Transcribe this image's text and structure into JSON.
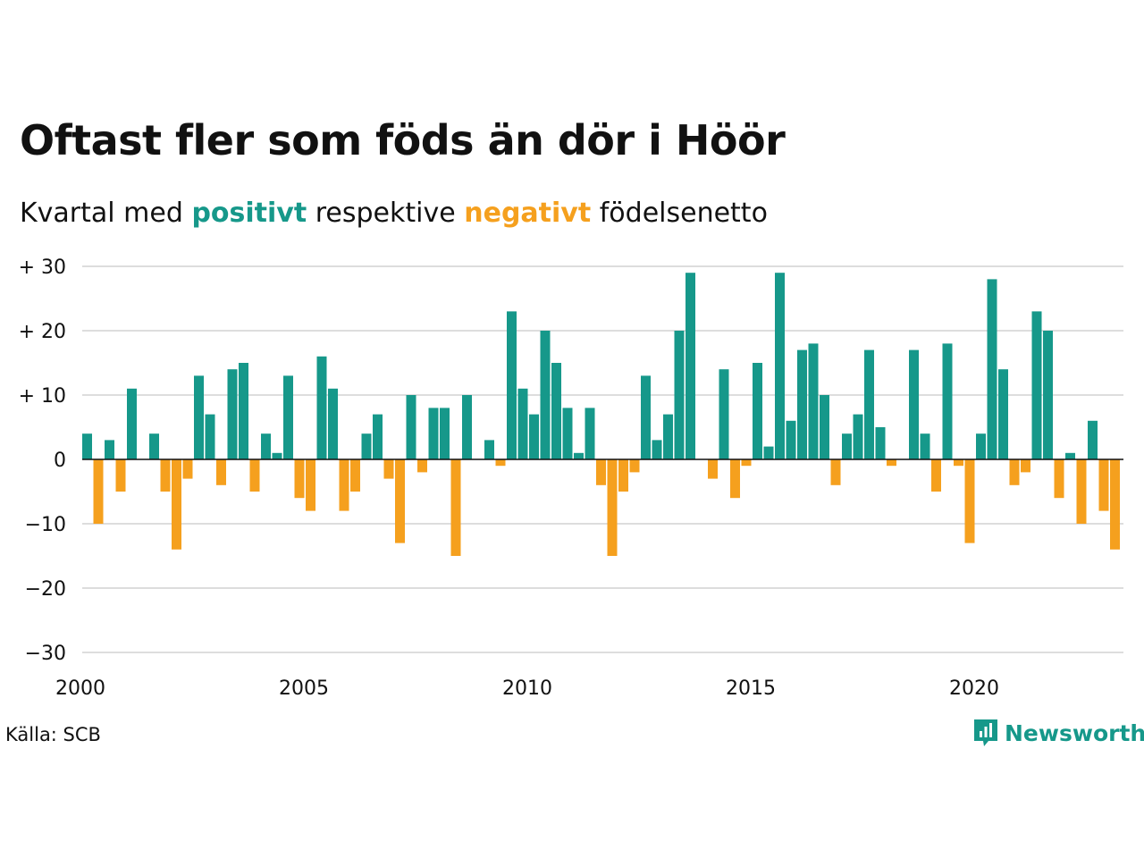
{
  "title": "Oftast fler som föds än dör i Höör",
  "subtitle": {
    "prefix": "Kvartal med",
    "positive_word": "positivt",
    "middle": "respektive",
    "negative_word": "negativt",
    "suffix": "födelsenetto"
  },
  "source": "Källa: SCB",
  "brand": "Newsworthy",
  "colors": {
    "positive": "#16988a",
    "negative": "#f5a01e",
    "grid": "#dddddd",
    "zero_line": "#111111"
  },
  "chart_data": {
    "type": "bar",
    "ylim": [
      -30,
      30
    ],
    "grid": true,
    "y_ticks": [
      {
        "value": 30,
        "label": "+ 30"
      },
      {
        "value": 20,
        "label": "+ 20"
      },
      {
        "value": 10,
        "label": "+ 10"
      },
      {
        "value": 0,
        "label": "0"
      },
      {
        "value": -10,
        "label": "−10"
      },
      {
        "value": -20,
        "label": "−20"
      },
      {
        "value": -30,
        "label": "−30"
      }
    ],
    "x_ticks": [
      "2000",
      "2005",
      "2010",
      "2015",
      "2020"
    ],
    "start_year": 2000,
    "values": [
      4,
      -10,
      3,
      -5,
      11,
      0,
      4,
      -5,
      -14,
      -3,
      13,
      7,
      -4,
      14,
      15,
      -5,
      4,
      1,
      13,
      -6,
      -8,
      16,
      11,
      -8,
      -5,
      4,
      7,
      -3,
      -13,
      10,
      -2,
      8,
      8,
      -15,
      10,
      0,
      3,
      -1,
      23,
      11,
      7,
      20,
      15,
      8,
      1,
      8,
      -4,
      -15,
      -5,
      -2,
      13,
      3,
      7,
      20,
      29,
      0,
      -3,
      14,
      -6,
      -1,
      15,
      2,
      29,
      6,
      17,
      18,
      10,
      -4,
      4,
      7,
      17,
      5,
      -1,
      0,
      17,
      4,
      -5,
      18,
      -1,
      -13,
      4,
      28,
      14,
      -4,
      -2,
      23,
      20,
      -6,
      1,
      -10,
      6,
      -8,
      -14
    ]
  }
}
